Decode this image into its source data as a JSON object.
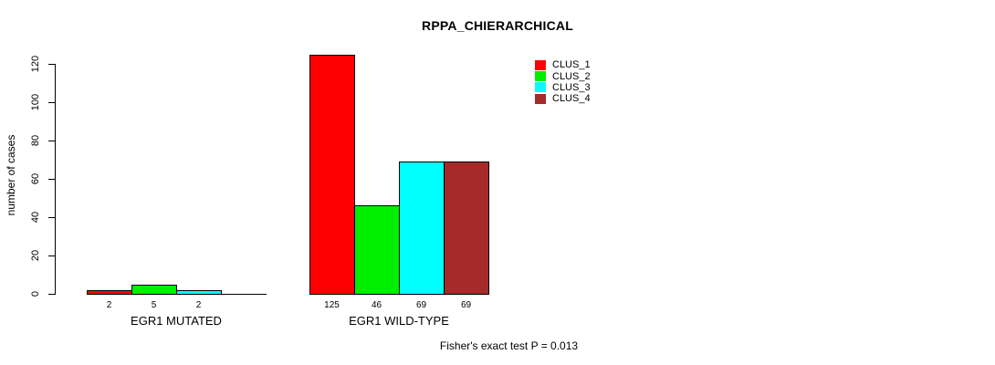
{
  "chart_data": {
    "type": "bar",
    "title": "RPPA_CHIERARCHICAL",
    "ylabel": "number of cases",
    "xlabel": "",
    "categories": [
      "EGR1 MUTATED",
      "EGR1 WILD-TYPE"
    ],
    "series": [
      {
        "name": "CLUS_1",
        "color": "#ff0000",
        "values": [
          2,
          125
        ]
      },
      {
        "name": "CLUS_2",
        "color": "#00ee00",
        "values": [
          5,
          46
        ]
      },
      {
        "name": "CLUS_3",
        "color": "#00ffff",
        "values": [
          2,
          69
        ]
      },
      {
        "name": "CLUS_4",
        "color": "#a52a2a",
        "values": [
          0,
          69
        ]
      }
    ],
    "bar_value_labels": [
      [
        "2",
        "5",
        "2",
        ""
      ],
      [
        "125",
        "46",
        "69",
        "69"
      ]
    ],
    "ylim": [
      0,
      125
    ],
    "yticks": [
      0,
      20,
      40,
      60,
      80,
      100,
      120
    ],
    "grid": false,
    "axis_color": "#000000",
    "legend_position": "top-right",
    "annotation": "Fisher's exact test P = 0.013"
  }
}
